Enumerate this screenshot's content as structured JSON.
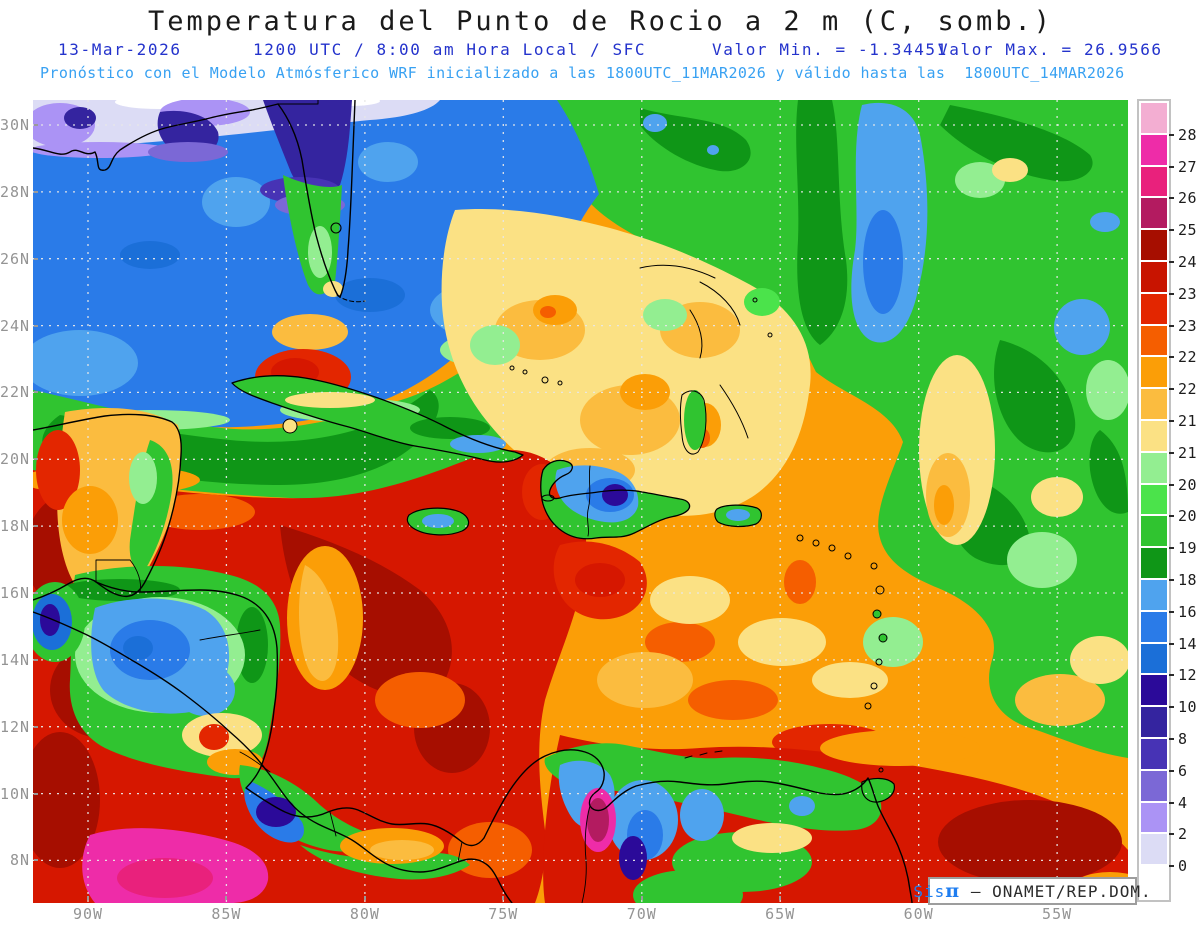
{
  "header": {
    "title": "Temperatura del Punto de Rocio a 2 m (C, somb.)",
    "date": "13-Mar-2026",
    "time_info": "1200 UTC / 8:00 am Hora Local / SFC",
    "valor_min": "Valor Min. = -1.34451",
    "valor_max": "Valor Max. = 26.9566",
    "forecast_line": "Pronóstico con el Modelo Atmósferico WRF inicializado a las 1800UTC_11MAR2026 y válido hasta las  1800UTC_14MAR2026"
  },
  "axes": {
    "lat_labels": [
      "30N",
      "28N",
      "26N",
      "24N",
      "22N",
      "20N",
      "18N",
      "16N",
      "14N",
      "12N",
      "10N",
      "8N"
    ],
    "lon_labels": [
      "90W",
      "85W",
      "80W",
      "75W",
      "70W",
      "65W",
      "60W",
      "55W"
    ]
  },
  "colorbar": {
    "labels": [
      "28",
      "27",
      "26",
      "25",
      "24.5",
      "23.5",
      "23",
      "22.5",
      "22",
      "21.5",
      "21",
      "20.5",
      "20",
      "19",
      "18",
      "16",
      "14",
      "12",
      "10",
      "8",
      "6",
      "4",
      "2",
      "0"
    ],
    "colors": [
      "#F3AED2",
      "#EE2CA8",
      "#E9217C",
      "#B31B60",
      "#A60E00",
      "#C81400",
      "#E32600",
      "#F55E00",
      "#FB9E07",
      "#FBBC3F",
      "#FBE184",
      "#93EE91",
      "#4BE34B",
      "#30C430",
      "#0F9617",
      "#4FA3EE",
      "#2A7BE8",
      "#1B6FD8",
      "#2B0A99",
      "#34249F",
      "#4733B5",
      "#7B68D6",
      "#AB93F5",
      "#DCDCF5",
      "#FFFFFF"
    ]
  },
  "watermark": {
    "sis": "Sis",
    "pi": "π",
    "rest": " – ONAMET/REP.DOM."
  },
  "colors": {
    "subtitle_blue": "#2433CC",
    "subtitle_cyan": "#38A1F2",
    "axis_label_gray": "#949494",
    "title_black": "#1A1A1A"
  }
}
